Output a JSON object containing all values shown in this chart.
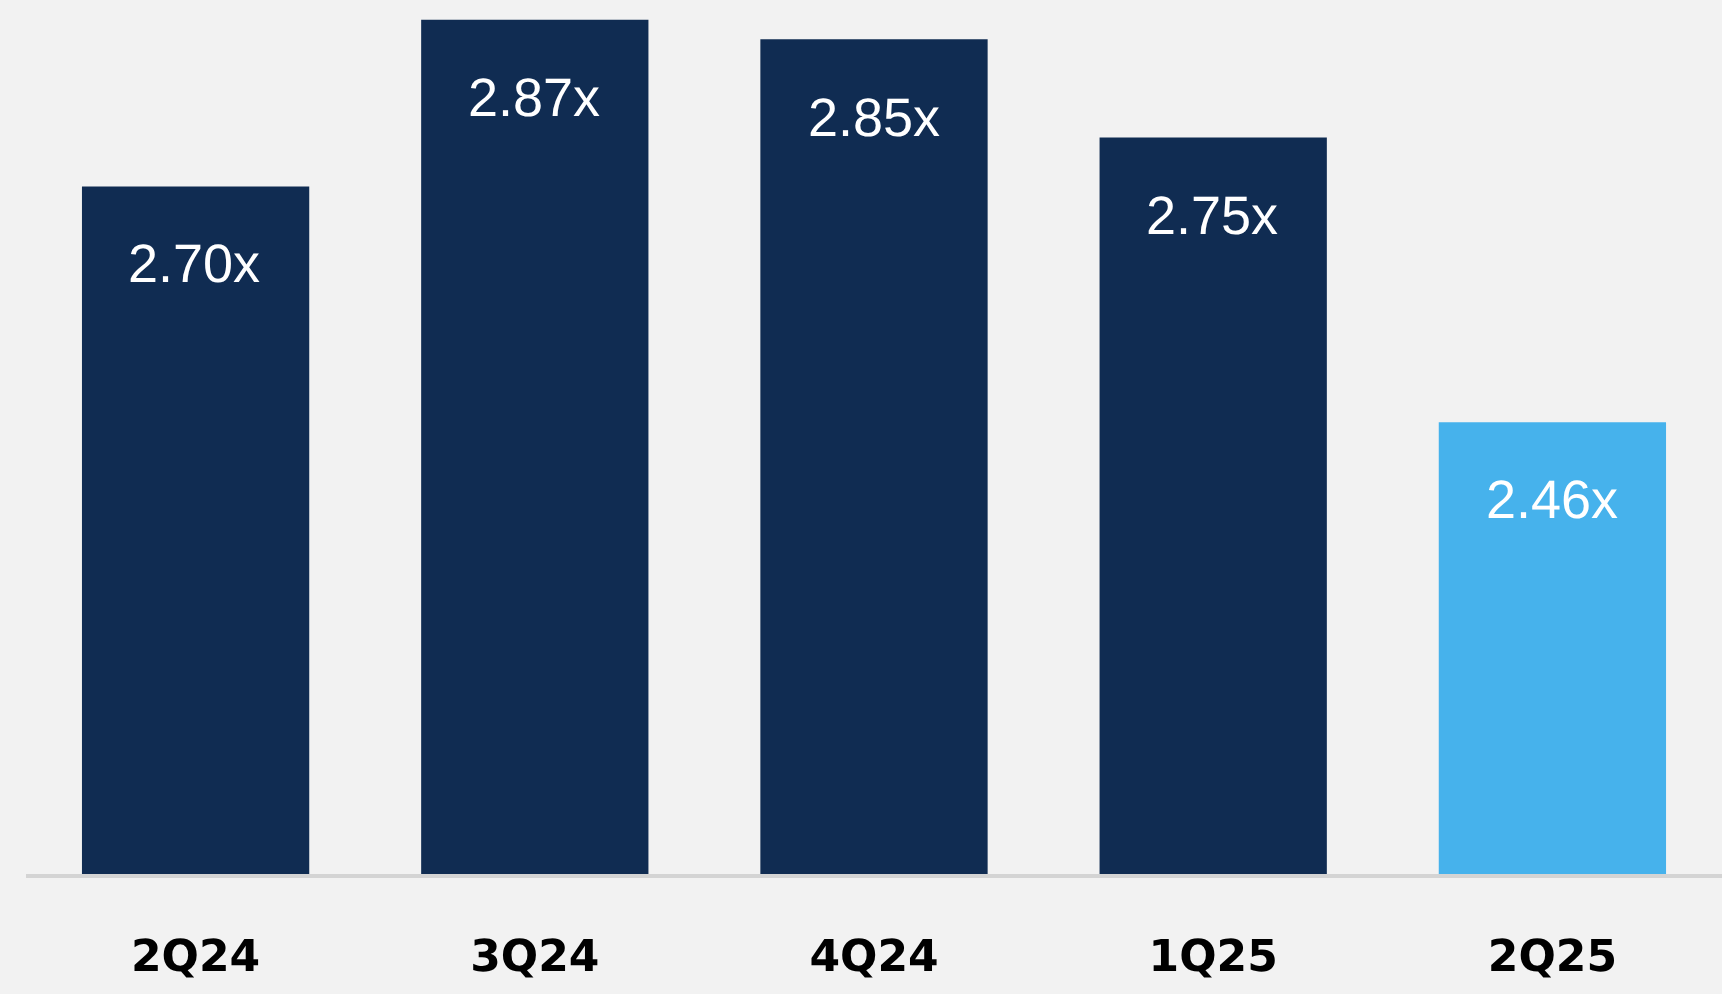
{
  "chart_data": {
    "type": "bar",
    "categories": [
      "2Q24",
      "3Q24",
      "4Q24",
      "1Q25",
      "2Q25"
    ],
    "values": [
      2.7,
      2.87,
      2.85,
      2.75,
      2.46
    ],
    "colors": [
      "#102c52",
      "#102c52",
      "#102c52",
      "#102c52",
      "#46b2ec"
    ],
    "value_labels": [
      "2.70x",
      "2.87x",
      "2.85x",
      "2.75x",
      "2.46x"
    ],
    "ylim": [
      2.0,
      2.89
    ],
    "tick_labels": "x",
    "grid": false
  }
}
